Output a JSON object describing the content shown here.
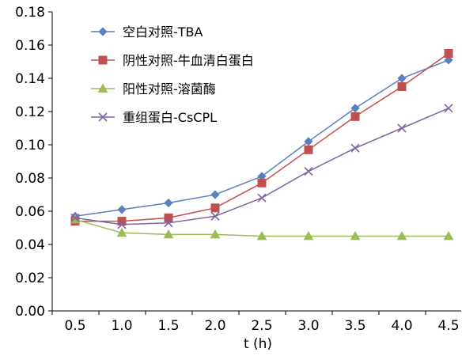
{
  "chart_data": {
    "type": "line",
    "title": "",
    "xlabel": "t (h)",
    "ylabel": "",
    "x": [
      0.5,
      1.0,
      1.5,
      2.0,
      2.5,
      3.0,
      3.5,
      4.0,
      4.5
    ],
    "x_tick_labels": [
      "0.5",
      "1.0",
      "1.5",
      "2.0",
      "2.5",
      "3.0",
      "3.5",
      "4.0",
      "4.5"
    ],
    "ylim": [
      0,
      0.18
    ],
    "y_ticks": [
      0,
      0.02,
      0.04,
      0.06,
      0.08,
      0.1,
      0.12,
      0.14,
      0.16,
      0.18
    ],
    "y_tick_labels": [
      "0.00",
      "0.02",
      "0.04",
      "0.06",
      "0.08",
      "0.10",
      "0.12",
      "0.14",
      "0.16",
      "0.18"
    ],
    "grid": false,
    "legend_position": "top-left",
    "series": [
      {
        "name": "空白对照-TBA",
        "color": "#5b7fbf",
        "marker": "diamond",
        "values": [
          0.057,
          0.061,
          0.065,
          0.07,
          0.081,
          0.102,
          0.122,
          0.14,
          0.151
        ]
      },
      {
        "name": "阴性对照-牛血清白蛋白",
        "color": "#c0504d",
        "marker": "square",
        "values": [
          0.054,
          0.054,
          0.056,
          0.062,
          0.077,
          0.097,
          0.117,
          0.135,
          0.155
        ]
      },
      {
        "name": "阳性对照-溶菌酶",
        "color": "#9bbb59",
        "marker": "triangle",
        "values": [
          0.055,
          0.047,
          0.046,
          0.046,
          0.045,
          0.045,
          0.045,
          0.045,
          0.045
        ]
      },
      {
        "name": "重组蛋白-CsCPL",
        "color": "#8064a2",
        "marker": "x",
        "values": [
          0.056,
          0.052,
          0.053,
          0.057,
          0.068,
          0.084,
          0.098,
          0.11,
          0.122
        ]
      }
    ]
  }
}
